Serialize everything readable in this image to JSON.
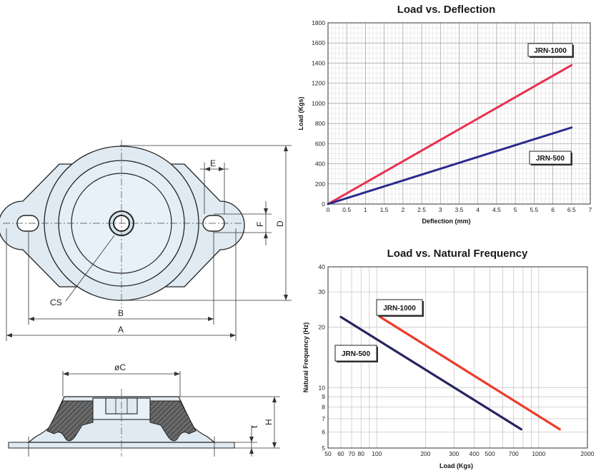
{
  "drawing": {
    "labels": {
      "a": "A",
      "b": "B",
      "cs": "CS",
      "d": "D",
      "e": "E",
      "f": "F",
      "oc": "øC",
      "h": "H",
      "t": "t"
    },
    "colors": {
      "body_fill": "#dfeaf2",
      "rubber_fill": "#5c5c5c",
      "outline": "#222222"
    }
  },
  "chart_data": [
    {
      "type": "line",
      "title": "Load vs. Deflection",
      "xlabel": "Deflection (mm)",
      "ylabel": "Load (Kgs)",
      "xlim": [
        0,
        7
      ],
      "ylim": [
        0,
        1800
      ],
      "x_ticks": [
        "0",
        "0.5",
        "1",
        "1.5",
        "2",
        "2.5",
        "3",
        "3.5",
        "4",
        "4.5",
        "5",
        "5.5",
        "6",
        "6.5",
        "7"
      ],
      "y_ticks": [
        "0",
        "200",
        "400",
        "600",
        "800",
        "1000",
        "1200",
        "1400",
        "1600",
        "1800"
      ],
      "grid": true,
      "series": [
        {
          "name": "JRN-1000",
          "color": "#e8304f",
          "x": [
            0,
            6.5
          ],
          "y": [
            0,
            1380
          ]
        },
        {
          "name": "JRN-500",
          "color": "#2b2a8c",
          "x": [
            0,
            6.5
          ],
          "y": [
            0,
            760
          ]
        }
      ]
    },
    {
      "type": "line",
      "title": "Load vs. Natural Frequency",
      "xlabel": "Load  (Kgs)",
      "ylabel": "Natural Frequency (Hz)",
      "xscale": "log",
      "yscale": "log",
      "xlim": [
        50,
        2000
      ],
      "ylim": [
        5,
        40
      ],
      "x_ticks": [
        {
          "label": "50",
          "value": 50
        },
        {
          "label": "60",
          "value": 60
        },
        {
          "label": "70",
          "value": 70
        },
        {
          "label": "80",
          "value": 80
        },
        {
          "label": "100",
          "value": 100
        },
        {
          "label": "200",
          "value": 200
        },
        {
          "label": "300",
          "value": 300
        },
        {
          "label": "400",
          "value": 400
        },
        {
          "label": "500",
          "value": 500
        },
        {
          "label": "700",
          "value": 700
        },
        {
          "label": "1000",
          "value": 1000
        },
        {
          "label": "2000",
          "value": 2000
        }
      ],
      "y_ticks": [
        {
          "label": "5",
          "value": 5
        },
        {
          "label": "6",
          "value": 6
        },
        {
          "label": "7",
          "value": 7
        },
        {
          "label": "8",
          "value": 8
        },
        {
          "label": "9",
          "value": 9
        },
        {
          "label": "10",
          "value": 10
        },
        {
          "label": "20",
          "value": 20
        },
        {
          "label": "30",
          "value": 30
        },
        {
          "label": "40",
          "value": 40
        }
      ],
      "grid": true,
      "series": [
        {
          "name": "JRN-1000",
          "color": "#ee3a2a",
          "x": [
            105,
            1350
          ],
          "y": [
            22.5,
            6.2
          ]
        },
        {
          "name": "JRN-500",
          "color": "#26235e",
          "x": [
            60,
            780
          ],
          "y": [
            22.5,
            6.2
          ]
        }
      ]
    }
  ]
}
